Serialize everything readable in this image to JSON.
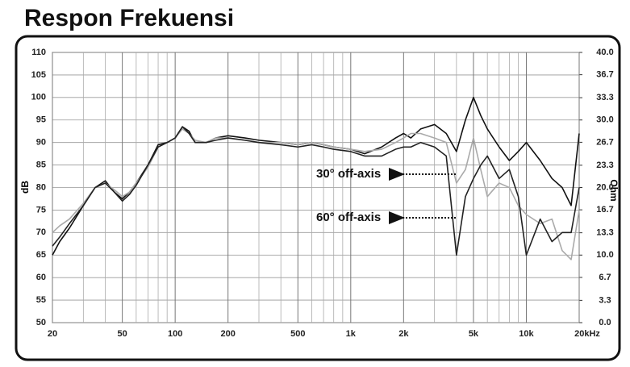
{
  "chart_data": {
    "type": "line",
    "title": "Respon Frekuensi",
    "ylabel": "dB",
    "y2label": "Ohm",
    "annotations": [
      "30° off-axis",
      "60° off-axis"
    ],
    "xscale": "log",
    "grid": true,
    "x": [
      20,
      22,
      25,
      30,
      35,
      40,
      45,
      50,
      55,
      60,
      70,
      80,
      90,
      100,
      110,
      120,
      130,
      150,
      170,
      200,
      250,
      300,
      400,
      500,
      600,
      700,
      800,
      1000,
      1200,
      1500,
      1800,
      2000,
      2200,
      2500,
      3000,
      3500,
      4000,
      4500,
      5000,
      5500,
      6000,
      7000,
      8000,
      9000,
      10000,
      12000,
      14000,
      16000,
      18000,
      20000
    ],
    "series": [
      {
        "color": "#111111",
        "values": [
          65,
          68,
          71,
          76,
          80,
          81.5,
          79,
          77.5,
          79,
          81,
          85,
          89.5,
          90,
          91,
          93.5,
          92.5,
          90,
          90,
          91,
          91.5,
          91,
          90.5,
          90,
          89.5,
          90,
          89.5,
          89,
          88.5,
          87.5,
          89,
          91,
          92,
          91,
          93,
          94,
          92,
          88,
          95,
          100,
          96,
          93,
          89,
          86,
          88,
          90,
          86,
          82,
          80,
          76,
          92
        ]
      },
      {
        "color": "#aaaaaa",
        "values": [
          70,
          71.5,
          73,
          76.5,
          80,
          81,
          79.5,
          78,
          79,
          81,
          84.5,
          89,
          90,
          91,
          93,
          92,
          90.5,
          90,
          91,
          91,
          90.5,
          90,
          90,
          89.5,
          90,
          89.5,
          89,
          88.5,
          88,
          88.5,
          90,
          91,
          92,
          92,
          91,
          90,
          81,
          84,
          91,
          84,
          78,
          81,
          80,
          76,
          74,
          72,
          73,
          66,
          64,
          75
        ]
      },
      {
        "color": "#222222",
        "values": [
          67,
          69,
          72,
          76,
          80,
          81,
          79,
          77,
          78.5,
          80.5,
          85,
          89,
          90,
          91,
          93.5,
          92,
          90,
          90,
          90.5,
          91,
          90.5,
          90,
          89.5,
          89,
          89.5,
          89,
          88.5,
          88,
          87,
          87,
          88.5,
          89,
          89,
          90,
          89,
          87,
          65,
          78,
          82,
          85,
          87,
          82,
          84,
          78,
          65,
          73,
          68,
          70,
          70,
          80
        ]
      }
    ],
    "xlim": [
      20,
      20000
    ],
    "xticks": [
      20,
      50,
      100,
      200,
      500,
      {
        "value": 1000,
        "label": "1k"
      },
      {
        "value": 2000,
        "label": "2k"
      },
      {
        "value": 5000,
        "label": "5k"
      },
      {
        "value": 10000,
        "label": "10k"
      },
      {
        "value": 20000,
        "label": "20kHz"
      }
    ],
    "xminor": [
      30,
      40,
      60,
      70,
      80,
      90,
      300,
      400,
      600,
      700,
      800,
      900,
      3000,
      4000,
      6000,
      7000,
      8000,
      9000
    ],
    "ylim": [
      50,
      110
    ],
    "yticks": [
      50,
      55,
      60,
      65,
      70,
      75,
      80,
      85,
      90,
      95,
      100,
      105,
      110
    ],
    "y2lim": [
      0,
      40
    ],
    "y2ticks": [
      {
        "value": 0,
        "label": "0.0"
      },
      3.3,
      6.7,
      {
        "value": 10,
        "label": "10.0"
      },
      13.3,
      16.7,
      {
        "value": 20,
        "label": "20.0"
      },
      23.3,
      26.7,
      {
        "value": 30,
        "label": "30.0"
      },
      33.3,
      36.7,
      {
        "value": 40,
        "label": "40.0"
      }
    ]
  }
}
